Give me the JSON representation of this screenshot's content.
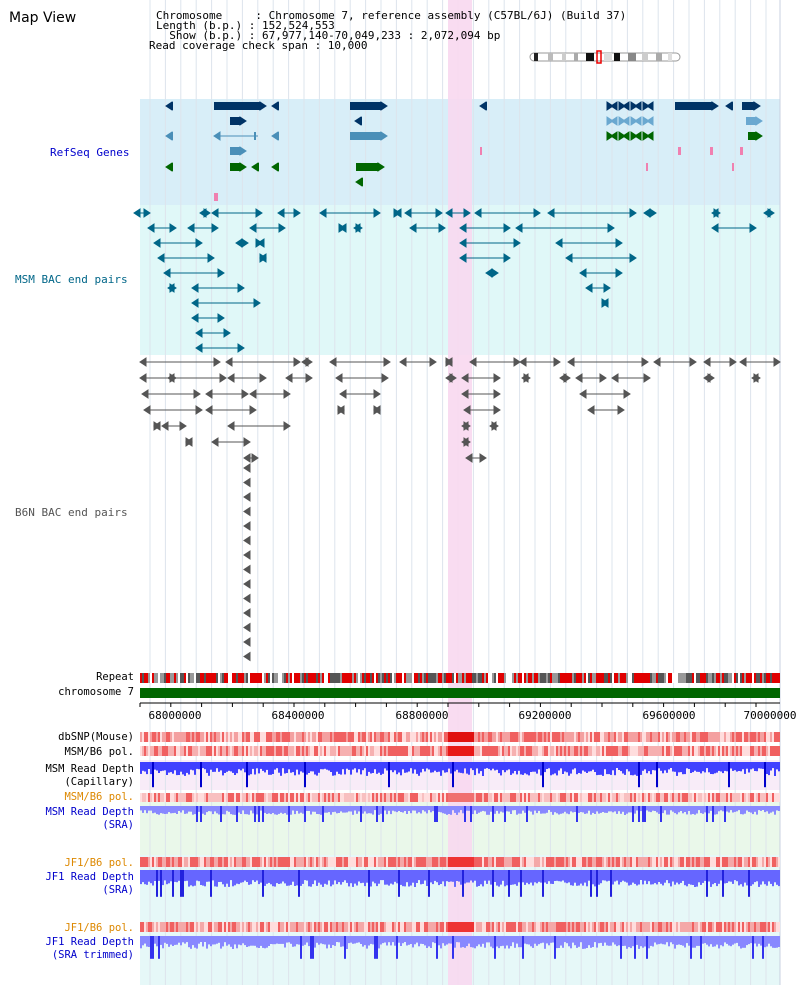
{
  "page": {
    "title": "Map View"
  },
  "info": {
    "chromosome_line": "Chromosome     : Chromosome 7, reference assembly (C57BL/6J) (Build 37)",
    "length_line": "Length (b.p.) : 152,524,553",
    "show_line": "  Show (b.p.) : 67,977,140-70,049,233 : 2,072,094 bp",
    "span_line": "Read coverage check span : 10,000"
  },
  "tracks": {
    "refseq": "RefSeq Genes",
    "msm_bac": "MSM BAC end pairs",
    "b6n_bac": "B6N BAC end pairs",
    "repeat": "Repeat",
    "chromosome": "chromosome 7",
    "dbsnp": "dbSNP(Mouse)",
    "msm_b6_pol_1": "MSM/B6 pol.",
    "msm_depth_cap_1": "MSM Read Depth",
    "msm_depth_cap_2": "(Capillary)",
    "msm_b6_pol_2": "MSM/B6 pol.",
    "msm_depth_sra_1": "MSM Read Depth",
    "msm_depth_sra_2": "(SRA)",
    "jf1_b6_pol_1": "JF1/B6 pol.",
    "jf1_depth_sra_1": "JF1 Read Depth",
    "jf1_depth_sra_2": "(SRA)",
    "jf1_b6_pol_2": "JF1/B6 pol.",
    "jf1_depth_trim_1": "JF1 Read Depth",
    "jf1_depth_trim_2": "(SRA trimmed)"
  },
  "axis": {
    "start_bp": 67977140,
    "end_bp": 70049233,
    "ticks": [
      "68000000",
      "68400000",
      "68800000",
      "69200000",
      "69600000",
      "70000000"
    ]
  },
  "colors": {
    "refseq_bg": "#d8eef8",
    "msm_bg": "#e0f8f8",
    "highlight": "#f8d8f0",
    "gene_dark": "#003366",
    "gene_mid": "#4a8fb8",
    "gene_green": "#006600",
    "msm_line": "#006688",
    "b6n_line": "#555555",
    "chromosome_bar": "#006600",
    "track_blue": "#0000cc",
    "track_orange": "#dd8800"
  }
}
